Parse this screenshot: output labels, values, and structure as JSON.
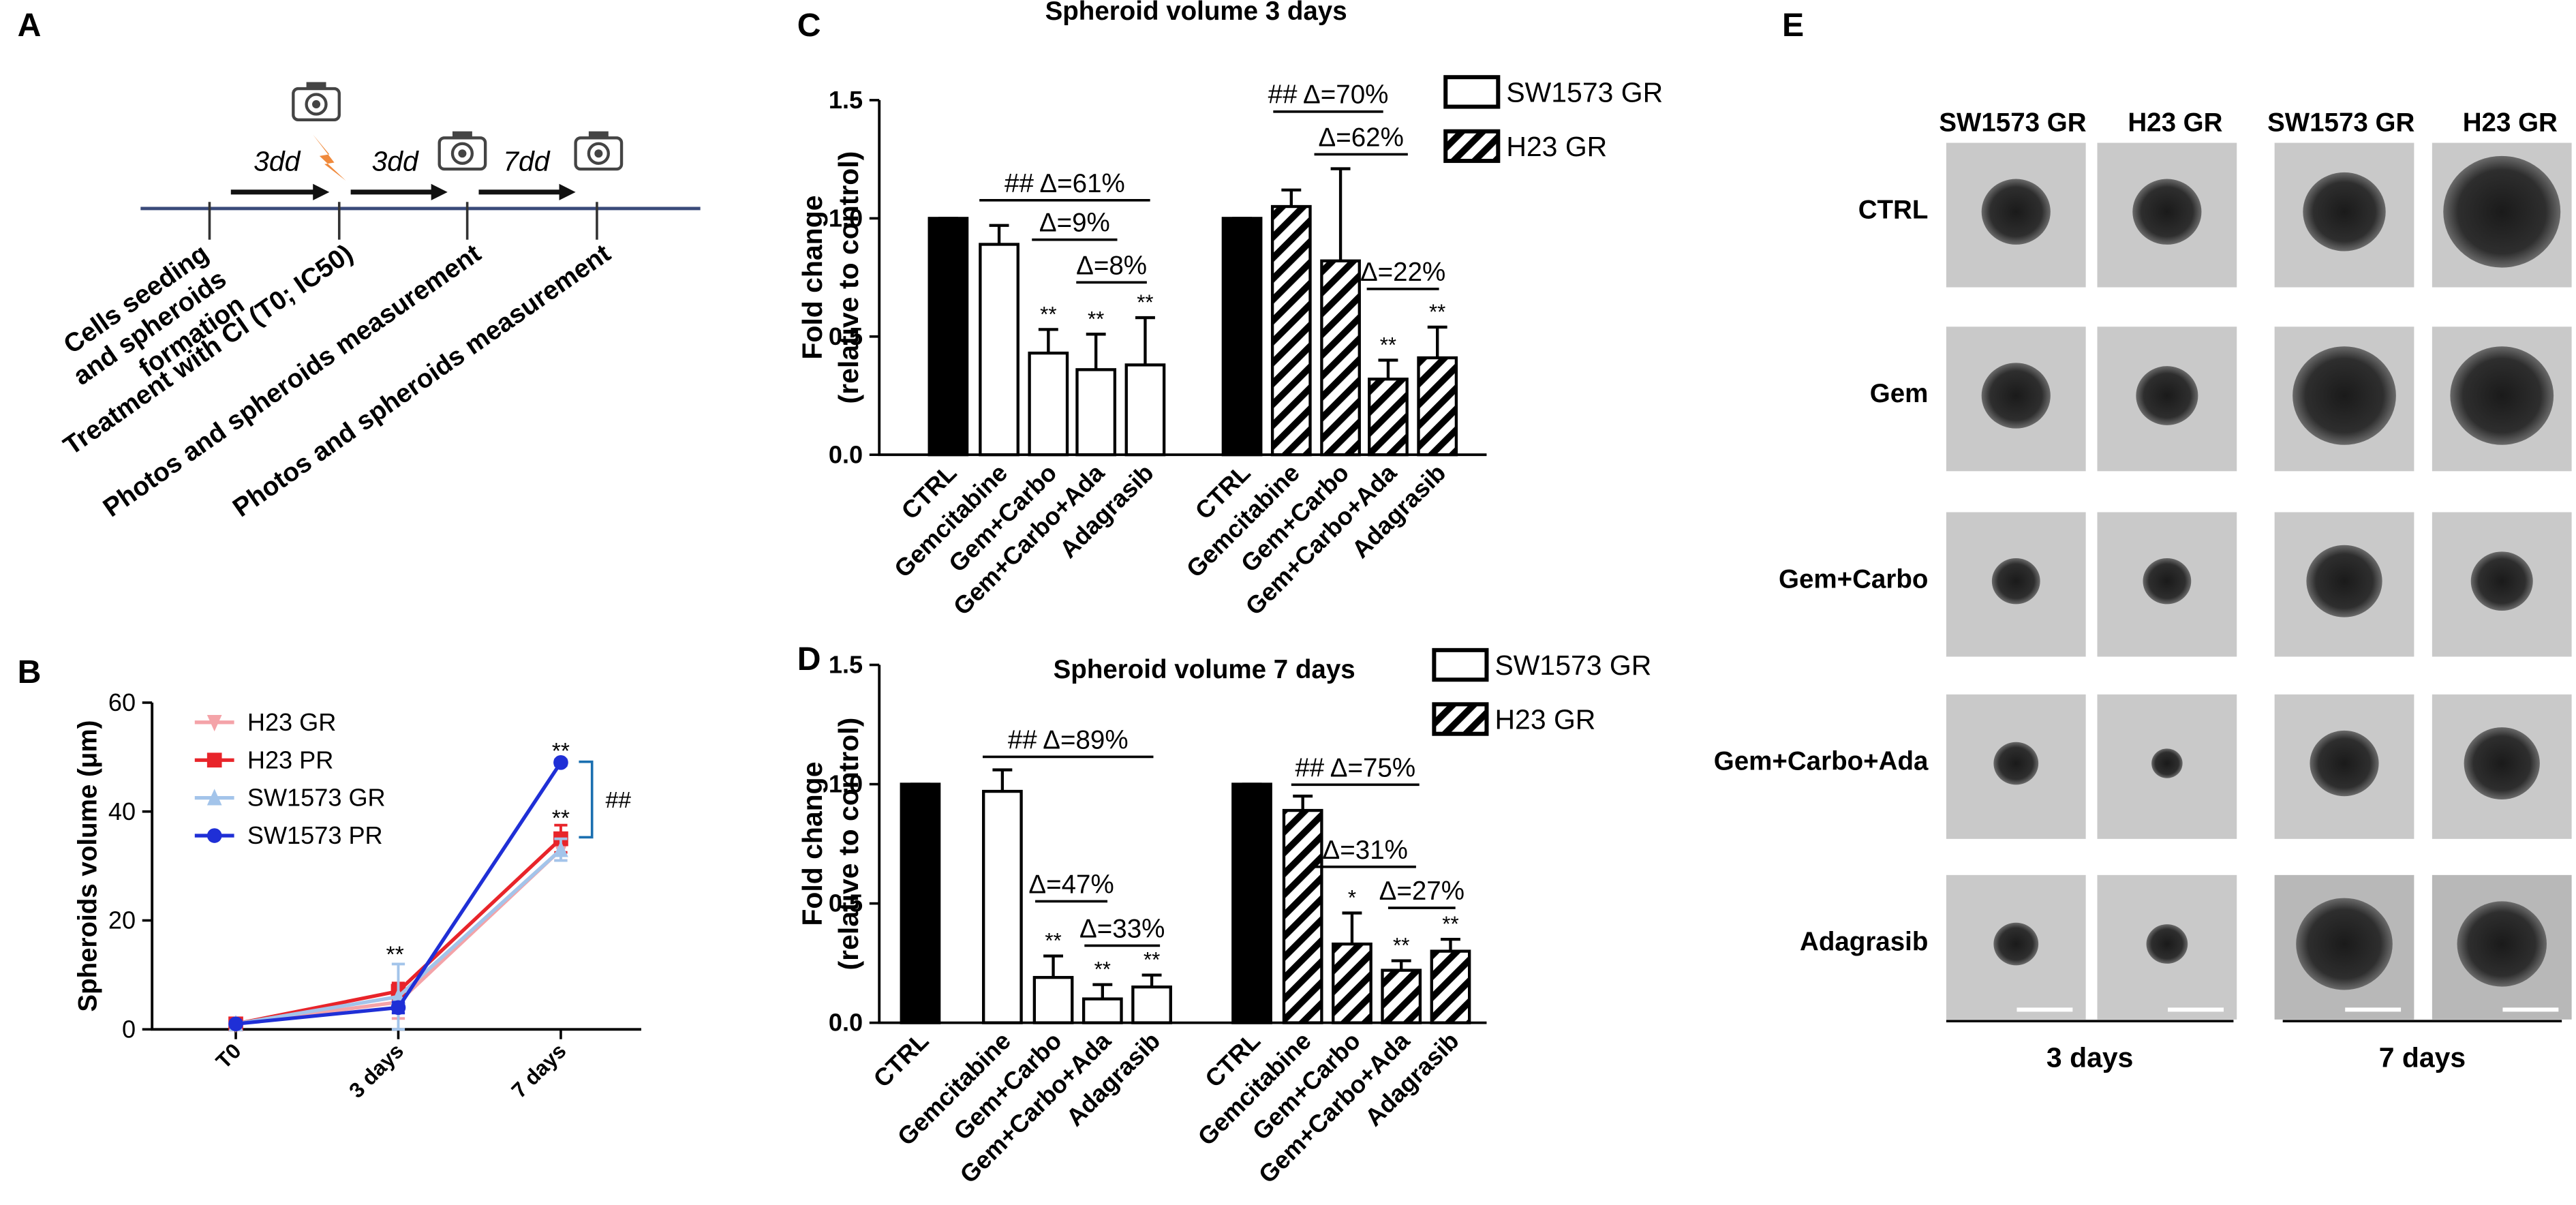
{
  "panel_labels": [
    "A",
    "B",
    "C",
    "D",
    "E"
  ],
  "timeline": {
    "intervals": [
      "3dd",
      "3dd",
      "7dd"
    ],
    "steps": [
      [
        "Cells seeding",
        "and spheroids",
        "formation"
      ],
      [
        "Treatment with CI (T0; IC50)"
      ],
      [
        "Photos and spheroids measurement"
      ],
      [
        "Photos and spheroids measurement"
      ]
    ]
  },
  "chart_data": [
    {
      "type": "line",
      "ylabel": "Spheroids volume (μm)",
      "categories": [
        "T0",
        "3 days",
        "7 days"
      ],
      "ylim": [
        0,
        60
      ],
      "yticks": [
        0,
        20,
        40,
        60
      ],
      "series": [
        {
          "name": "H23 GR",
          "color": "#f4a3a8",
          "marker": "triangle-down",
          "values": [
            1,
            5,
            33
          ],
          "errors": [
            0.5,
            3,
            2
          ]
        },
        {
          "name": "H23 PR",
          "color": "#e8242a",
          "marker": "square",
          "values": [
            1,
            7,
            35
          ],
          "errors": [
            0.5,
            1.5,
            2.5
          ]
        },
        {
          "name": "SW1573 GR",
          "color": "#a3c4ea",
          "marker": "triangle-up",
          "values": [
            1,
            6,
            33
          ],
          "errors": [
            0.5,
            6,
            2
          ]
        },
        {
          "name": "SW1573 PR",
          "color": "#1f2fd6",
          "marker": "circle",
          "values": [
            1,
            4,
            49
          ],
          "errors": [
            0.5,
            1,
            0.5
          ]
        }
      ],
      "annotations": [
        "**",
        "**",
        "**",
        "##"
      ]
    },
    {
      "type": "bar",
      "title": "Spheroid volume 3 days",
      "ylabel": [
        "Fold change",
        "(relative to control)"
      ],
      "categories": [
        "CTRL",
        "Gemcitabine",
        "Gem+Carbo",
        "Gem+Carbo+Ada",
        "Adagrasib"
      ],
      "ylim": [
        0,
        1.5
      ],
      "yticks": [
        {
          "value": 0,
          "label": "0.0"
        },
        {
          "value": 0.5,
          "label": "0.5"
        },
        {
          "value": 1,
          "label": "1.0"
        },
        {
          "value": 1.5,
          "label": "1.5"
        }
      ],
      "control_color": "#000000",
      "series": [
        {
          "name": "SW1573 GR",
          "fill": "white",
          "values": [
            1.0,
            0.89,
            0.43,
            0.36,
            0.38
          ],
          "errors": [
            0,
            0.08,
            0.1,
            0.15,
            0.2
          ],
          "significance": [
            null,
            null,
            "**",
            "**",
            "**"
          ]
        },
        {
          "name": "H23 GR",
          "fill": "hatched",
          "values": [
            1.0,
            1.05,
            0.82,
            0.32,
            0.41
          ],
          "errors": [
            0,
            0.07,
            0.39,
            0.08,
            0.13
          ],
          "significance": [
            null,
            null,
            null,
            "**",
            "**"
          ]
        }
      ],
      "comparisons": [
        [
          "## Δ=61%",
          "Δ=9%",
          "Δ=8%"
        ],
        [
          "## Δ=70%",
          "Δ=62%",
          "Δ=22%"
        ]
      ]
    },
    {
      "type": "bar",
      "title": "Spheroid volume 7 days",
      "ylabel": [
        "Fold change",
        "(relative to control)"
      ],
      "categories": [
        "CTRL",
        "Gemcitabine",
        "Gem+Carbo",
        "Gem+Carbo+Ada",
        "Adagrasib"
      ],
      "ylim": [
        0,
        1.5
      ],
      "yticks": [
        {
          "value": 0,
          "label": "0.0"
        },
        {
          "value": 0.5,
          "label": "0.5"
        },
        {
          "value": 1,
          "label": "1.0"
        },
        {
          "value": 1.5,
          "label": "1.5"
        }
      ],
      "control_color": "#000000",
      "series": [
        {
          "name": "SW1573 GR",
          "fill": "white",
          "values": [
            1.0,
            0.97,
            0.19,
            0.1,
            0.15
          ],
          "errors": [
            0,
            0.09,
            0.09,
            0.06,
            0.05
          ],
          "significance": [
            null,
            null,
            "**",
            "**",
            "**"
          ]
        },
        {
          "name": "H23 GR",
          "fill": "hatched",
          "values": [
            1.0,
            0.89,
            0.33,
            0.22,
            0.3
          ],
          "errors": [
            0,
            0.06,
            0.13,
            0.04,
            0.05
          ],
          "significance": [
            null,
            null,
            "*",
            "**",
            "**"
          ]
        }
      ],
      "comparisons": [
        [
          "## Δ=89%",
          "Δ=47%",
          "Δ=33%"
        ],
        [
          "## Δ=75%",
          "Δ=31%",
          "Δ=27%"
        ]
      ]
    }
  ],
  "micrographs": {
    "columns": [
      "SW1573 GR",
      "H23 GR",
      "SW1573 GR",
      "H23 GR"
    ],
    "rows": [
      "CTRL",
      "Gem",
      "Gem+Carbo",
      "Gem+Carbo+Ada",
      "Adagrasib"
    ],
    "timepoints": [
      "3 days",
      "7 days"
    ]
  }
}
